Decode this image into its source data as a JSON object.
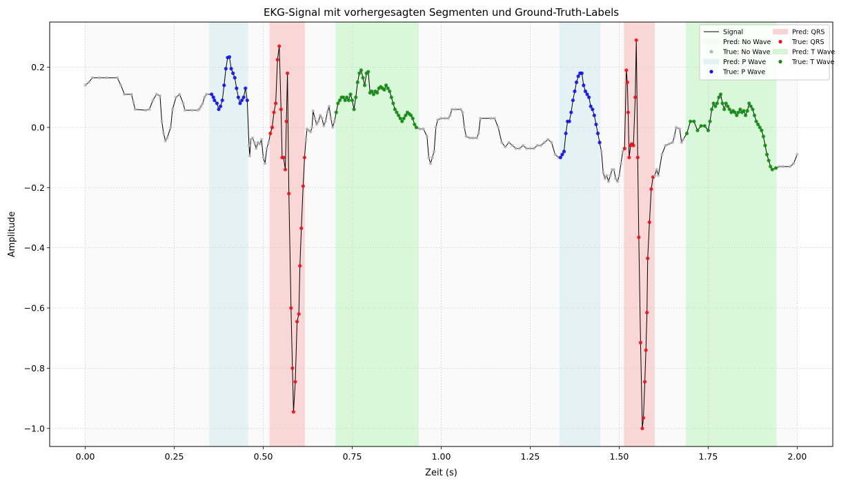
{
  "chart_data": {
    "type": "line",
    "title": "EKG-Signal mit vorhergesagten Segmenten und Ground-Truth-Labels",
    "xlabel": "Zeit (s)",
    "ylabel": "Amplitude",
    "xlim": [
      -0.1,
      2.1
    ],
    "ylim": [
      -1.06,
      0.35
    ],
    "xticks": [
      0.0,
      0.25,
      0.5,
      0.75,
      1.0,
      1.25,
      1.5,
      1.75,
      2.0
    ],
    "xtick_labels": [
      "0.00",
      "0.25",
      "0.50",
      "0.75",
      "1.00",
      "1.25",
      "1.50",
      "1.75",
      "2.00"
    ],
    "yticks": [
      0.2,
      0.0,
      -0.2,
      -0.4,
      -0.6,
      -0.8,
      -1.0
    ],
    "ytick_labels": [
      "0.2",
      "0.0",
      "−0.2",
      "−0.4",
      "−0.6",
      "−0.8",
      "−1.0"
    ],
    "grid": true,
    "legend_position": "top-right",
    "colors": {
      "signal": "#000000",
      "no_wave_band": "#f3f3f3",
      "no_wave_point": "#b8b8b8",
      "p_wave_band": "#d8ecf2",
      "p_wave_point": "#1414e6",
      "qrs_band": "#f8c6c6",
      "qrs_point": "#e6141e",
      "t_wave_band": "#c9f3c9",
      "t_wave_point": "#148c14"
    },
    "legend": [
      {
        "label": "Signal",
        "kind": "line",
        "color": "signal"
      },
      {
        "label": "Pred: No Wave",
        "kind": "band",
        "color": "no_wave_band"
      },
      {
        "label": "True: No Wave",
        "kind": "dot",
        "color": "no_wave_point"
      },
      {
        "label": "Pred: P Wave",
        "kind": "band",
        "color": "p_wave_band"
      },
      {
        "label": "True: P Wave",
        "kind": "dot",
        "color": "p_wave_point"
      },
      {
        "label": "Pred: QRS",
        "kind": "band",
        "color": "qrs_band"
      },
      {
        "label": "True: QRS",
        "kind": "dot",
        "color": "qrs_point"
      },
      {
        "label": "Pred: T Wave",
        "kind": "band",
        "color": "t_wave_band"
      },
      {
        "label": "True: T Wave",
        "kind": "dot",
        "color": "t_wave_point"
      }
    ],
    "predicted_segments": [
      {
        "class": "no_wave",
        "start": 0.0,
        "end": 0.348
      },
      {
        "class": "p_wave",
        "start": 0.348,
        "end": 0.458
      },
      {
        "class": "no_wave",
        "start": 0.458,
        "end": 0.518
      },
      {
        "class": "qrs",
        "start": 0.518,
        "end": 0.617
      },
      {
        "class": "no_wave",
        "start": 0.617,
        "end": 0.703
      },
      {
        "class": "t_wave",
        "start": 0.703,
        "end": 0.937
      },
      {
        "class": "no_wave",
        "start": 0.937,
        "end": 1.332
      },
      {
        "class": "p_wave",
        "start": 1.332,
        "end": 1.447
      },
      {
        "class": "no_wave",
        "start": 1.447,
        "end": 1.513
      },
      {
        "class": "qrs",
        "start": 1.513,
        "end": 1.6
      },
      {
        "class": "no_wave",
        "start": 1.6,
        "end": 1.687
      },
      {
        "class": "t_wave",
        "start": 1.687,
        "end": 1.942
      },
      {
        "class": "no_wave",
        "start": 1.942,
        "end": 2.0
      }
    ],
    "signal": [
      [
        0.0,
        0.14
      ],
      [
        0.01,
        0.15
      ],
      [
        0.02,
        0.165
      ],
      [
        0.04,
        0.165
      ],
      [
        0.06,
        0.165
      ],
      [
        0.09,
        0.165
      ],
      [
        0.1,
        0.14
      ],
      [
        0.11,
        0.11
      ],
      [
        0.13,
        0.11
      ],
      [
        0.135,
        0.085
      ],
      [
        0.14,
        0.06
      ],
      [
        0.17,
        0.057
      ],
      [
        0.18,
        0.06
      ],
      [
        0.19,
        0.09
      ],
      [
        0.2,
        0.11
      ],
      [
        0.21,
        0.105
      ],
      [
        0.215,
        0.02
      ],
      [
        0.22,
        -0.02
      ],
      [
        0.225,
        -0.045
      ],
      [
        0.23,
        -0.035
      ],
      [
        0.24,
        0.0
      ],
      [
        0.245,
        0.06
      ],
      [
        0.255,
        0.1
      ],
      [
        0.265,
        0.11
      ],
      [
        0.275,
        0.08
      ],
      [
        0.28,
        0.057
      ],
      [
        0.3,
        0.057
      ],
      [
        0.315,
        0.057
      ],
      [
        0.32,
        0.06
      ],
      [
        0.325,
        0.07
      ],
      [
        0.33,
        0.08
      ],
      [
        0.335,
        0.1
      ],
      [
        0.34,
        0.11
      ],
      [
        0.355,
        0.11
      ],
      [
        0.36,
        0.1
      ],
      [
        0.363,
        0.09
      ],
      [
        0.37,
        0.08
      ],
      [
        0.375,
        0.06
      ],
      [
        0.38,
        0.07
      ],
      [
        0.385,
        0.09
      ],
      [
        0.39,
        0.14
      ],
      [
        0.395,
        0.195
      ],
      [
        0.4,
        0.232
      ],
      [
        0.405,
        0.234
      ],
      [
        0.41,
        0.195
      ],
      [
        0.415,
        0.18
      ],
      [
        0.42,
        0.165
      ],
      [
        0.425,
        0.13
      ],
      [
        0.43,
        0.1
      ],
      [
        0.435,
        0.08
      ],
      [
        0.44,
        0.09
      ],
      [
        0.445,
        0.1
      ],
      [
        0.45,
        0.13
      ],
      [
        0.455,
        0.09
      ],
      [
        0.46,
        -0.06
      ],
      [
        0.462,
        -0.095
      ],
      [
        0.465,
        -0.04
      ],
      [
        0.47,
        -0.035
      ],
      [
        0.475,
        -0.05
      ],
      [
        0.48,
        -0.07
      ],
      [
        0.485,
        -0.05
      ],
      [
        0.49,
        -0.055
      ],
      [
        0.495,
        -0.04
      ],
      [
        0.5,
        -0.1
      ],
      [
        0.505,
        -0.12
      ],
      [
        0.51,
        -0.07
      ],
      [
        0.515,
        -0.05
      ],
      [
        0.52,
        -0.02
      ],
      [
        0.525,
        0.0
      ],
      [
        0.53,
        0.05
      ],
      [
        0.535,
        0.08
      ],
      [
        0.54,
        0.225
      ],
      [
        0.545,
        0.27
      ],
      [
        0.55,
        0.06
      ],
      [
        0.553,
        -0.1
      ],
      [
        0.557,
        -0.1
      ],
      [
        0.562,
        -0.14
      ],
      [
        0.565,
        0.02
      ],
      [
        0.568,
        0.18
      ],
      [
        0.572,
        -0.22
      ],
      [
        0.578,
        -0.6
      ],
      [
        0.582,
        -0.8
      ],
      [
        0.585,
        -0.945
      ],
      [
        0.59,
        -0.845
      ],
      [
        0.595,
        -0.645
      ],
      [
        0.6,
        -0.62
      ],
      [
        0.603,
        -0.46
      ],
      [
        0.607,
        -0.335
      ],
      [
        0.612,
        -0.195
      ],
      [
        0.616,
        -0.1
      ],
      [
        0.62,
        -0.04
      ],
      [
        0.623,
        -0.005
      ],
      [
        0.628,
        -0.01
      ],
      [
        0.633,
        -0.015
      ],
      [
        0.637,
        0.0
      ],
      [
        0.64,
        0.055
      ],
      [
        0.645,
        0.03
      ],
      [
        0.65,
        0.01
      ],
      [
        0.655,
        0.02
      ],
      [
        0.66,
        0.04
      ],
      [
        0.665,
        0.03
      ],
      [
        0.67,
        0.005
      ],
      [
        0.675,
        0.02
      ],
      [
        0.68,
        0.05
      ],
      [
        0.685,
        0.07
      ],
      [
        0.69,
        0.03
      ],
      [
        0.695,
        0.0
      ],
      [
        0.7,
        0.02
      ],
      [
        0.705,
        0.05
      ],
      [
        0.71,
        0.08
      ],
      [
        0.715,
        0.09
      ],
      [
        0.72,
        0.1
      ],
      [
        0.725,
        0.1
      ],
      [
        0.73,
        0.09
      ],
      [
        0.735,
        0.1
      ],
      [
        0.74,
        0.09
      ],
      [
        0.745,
        0.11
      ],
      [
        0.75,
        0.09
      ],
      [
        0.755,
        0.06
      ],
      [
        0.76,
        0.1
      ],
      [
        0.765,
        0.15
      ],
      [
        0.77,
        0.18
      ],
      [
        0.775,
        0.19
      ],
      [
        0.78,
        0.165
      ],
      [
        0.785,
        0.14
      ],
      [
        0.79,
        0.18
      ],
      [
        0.795,
        0.185
      ],
      [
        0.8,
        0.115
      ],
      [
        0.805,
        0.12
      ],
      [
        0.81,
        0.11
      ],
      [
        0.815,
        0.12
      ],
      [
        0.82,
        0.115
      ],
      [
        0.825,
        0.13
      ],
      [
        0.83,
        0.135
      ],
      [
        0.835,
        0.13
      ],
      [
        0.84,
        0.125
      ],
      [
        0.845,
        0.14
      ],
      [
        0.85,
        0.13
      ],
      [
        0.855,
        0.12
      ],
      [
        0.86,
        0.1
      ],
      [
        0.865,
        0.08
      ],
      [
        0.87,
        0.06
      ],
      [
        0.875,
        0.05
      ],
      [
        0.88,
        0.04
      ],
      [
        0.885,
        0.03
      ],
      [
        0.89,
        0.02
      ],
      [
        0.895,
        0.03
      ],
      [
        0.9,
        0.04
      ],
      [
        0.905,
        0.05
      ],
      [
        0.91,
        0.045
      ],
      [
        0.915,
        0.04
      ],
      [
        0.92,
        0.03
      ],
      [
        0.925,
        0.01
      ],
      [
        0.93,
        0.0
      ],
      [
        0.94,
        -0.005
      ],
      [
        0.95,
        -0.005
      ],
      [
        0.96,
        -0.03
      ],
      [
        0.965,
        -0.1
      ],
      [
        0.97,
        -0.12
      ],
      [
        0.975,
        -0.1
      ],
      [
        0.98,
        -0.08
      ],
      [
        0.985,
        0.0
      ],
      [
        0.99,
        0.025
      ],
      [
        1.0,
        0.03
      ],
      [
        1.01,
        0.03
      ],
      [
        1.02,
        0.03
      ],
      [
        1.025,
        0.04
      ],
      [
        1.03,
        0.06
      ],
      [
        1.04,
        0.06
      ],
      [
        1.055,
        0.06
      ],
      [
        1.06,
        0.05
      ],
      [
        1.065,
        0.0
      ],
      [
        1.07,
        -0.03
      ],
      [
        1.08,
        -0.035
      ],
      [
        1.09,
        -0.035
      ],
      [
        1.1,
        -0.035
      ],
      [
        1.105,
        -0.02
      ],
      [
        1.11,
        0.03
      ],
      [
        1.14,
        0.03
      ],
      [
        1.15,
        0.03
      ],
      [
        1.16,
        0.0
      ],
      [
        1.17,
        -0.05
      ],
      [
        1.18,
        -0.065
      ],
      [
        1.19,
        -0.05
      ],
      [
        1.2,
        -0.06
      ],
      [
        1.21,
        -0.07
      ],
      [
        1.22,
        -0.07
      ],
      [
        1.23,
        -0.06
      ],
      [
        1.24,
        -0.07
      ],
      [
        1.25,
        -0.07
      ],
      [
        1.26,
        -0.07
      ],
      [
        1.27,
        -0.06
      ],
      [
        1.28,
        -0.06
      ],
      [
        1.29,
        -0.05
      ],
      [
        1.3,
        -0.04
      ],
      [
        1.31,
        -0.05
      ],
      [
        1.32,
        -0.09
      ],
      [
        1.33,
        -0.1
      ],
      [
        1.335,
        -0.1
      ],
      [
        1.34,
        -0.09
      ],
      [
        1.345,
        -0.08
      ],
      [
        1.35,
        -0.02
      ],
      [
        1.355,
        0.02
      ],
      [
        1.36,
        0.02
      ],
      [
        1.365,
        0.05
      ],
      [
        1.37,
        0.09
      ],
      [
        1.375,
        0.12
      ],
      [
        1.38,
        0.15
      ],
      [
        1.385,
        0.17
      ],
      [
        1.39,
        0.18
      ],
      [
        1.395,
        0.18
      ],
      [
        1.4,
        0.14
      ],
      [
        1.405,
        0.12
      ],
      [
        1.41,
        0.11
      ],
      [
        1.415,
        0.1
      ],
      [
        1.42,
        0.07
      ],
      [
        1.425,
        0.06
      ],
      [
        1.43,
        0.04
      ],
      [
        1.435,
        0.01
      ],
      [
        1.44,
        -0.02
      ],
      [
        1.445,
        -0.05
      ],
      [
        1.45,
        -0.08
      ],
      [
        1.455,
        -0.15
      ],
      [
        1.46,
        -0.17
      ],
      [
        1.465,
        -0.16
      ],
      [
        1.47,
        -0.18
      ],
      [
        1.475,
        -0.16
      ],
      [
        1.48,
        -0.14
      ],
      [
        1.485,
        -0.14
      ],
      [
        1.49,
        -0.17
      ],
      [
        1.495,
        -0.18
      ],
      [
        1.5,
        -0.16
      ],
      [
        1.505,
        -0.12
      ],
      [
        1.51,
        -0.08
      ],
      [
        1.515,
        -0.07
      ],
      [
        1.52,
        0.19
      ],
      [
        1.523,
        0.15
      ],
      [
        1.525,
        0.05
      ],
      [
        1.528,
        -0.1
      ],
      [
        1.532,
        -0.06
      ],
      [
        1.535,
        -0.055
      ],
      [
        1.54,
        -0.06
      ],
      [
        1.545,
        0.1
      ],
      [
        1.548,
        0.29
      ],
      [
        1.552,
        -0.1
      ],
      [
        1.555,
        -0.365
      ],
      [
        1.56,
        -0.715
      ],
      [
        1.565,
        -1.0
      ],
      [
        1.568,
        -0.965
      ],
      [
        1.572,
        -0.845
      ],
      [
        1.575,
        -0.74
      ],
      [
        1.578,
        -0.615
      ],
      [
        1.58,
        -0.435
      ],
      [
        1.585,
        -0.315
      ],
      [
        1.59,
        -0.205
      ],
      [
        1.595,
        -0.165
      ],
      [
        1.6,
        -0.16
      ],
      [
        1.605,
        -0.14
      ],
      [
        1.61,
        -0.16
      ],
      [
        1.62,
        -0.09
      ],
      [
        1.63,
        -0.06
      ],
      [
        1.64,
        -0.055
      ],
      [
        1.65,
        -0.05
      ],
      [
        1.655,
        -0.03
      ],
      [
        1.66,
        0.0
      ],
      [
        1.67,
        -0.005
      ],
      [
        1.675,
        -0.05
      ],
      [
        1.68,
        -0.04
      ],
      [
        1.69,
        -0.02
      ],
      [
        1.7,
        0.02
      ],
      [
        1.71,
        0.02
      ],
      [
        1.72,
        -0.01
      ],
      [
        1.73,
        0.005
      ],
      [
        1.74,
        0.005
      ],
      [
        1.75,
        -0.01
      ],
      [
        1.755,
        0.02
      ],
      [
        1.76,
        0.06
      ],
      [
        1.765,
        0.08
      ],
      [
        1.77,
        0.07
      ],
      [
        1.775,
        0.08
      ],
      [
        1.78,
        0.1
      ],
      [
        1.785,
        0.11
      ],
      [
        1.79,
        0.08
      ],
      [
        1.795,
        0.06
      ],
      [
        1.8,
        0.08
      ],
      [
        1.805,
        0.07
      ],
      [
        1.81,
        0.06
      ],
      [
        1.815,
        0.05
      ],
      [
        1.82,
        0.055
      ],
      [
        1.825,
        0.05
      ],
      [
        1.83,
        0.04
      ],
      [
        1.835,
        0.05
      ],
      [
        1.84,
        0.06
      ],
      [
        1.845,
        0.05
      ],
      [
        1.85,
        0.055
      ],
      [
        1.855,
        0.04
      ],
      [
        1.86,
        0.055
      ],
      [
        1.865,
        0.08
      ],
      [
        1.87,
        0.07
      ],
      [
        1.875,
        0.06
      ],
      [
        1.88,
        0.04
      ],
      [
        1.885,
        0.02
      ],
      [
        1.89,
        0.01
      ],
      [
        1.895,
        0.0
      ],
      [
        1.9,
        -0.01
      ],
      [
        1.905,
        -0.03
      ],
      [
        1.91,
        -0.06
      ],
      [
        1.915,
        -0.09
      ],
      [
        1.92,
        -0.11
      ],
      [
        1.925,
        -0.13
      ],
      [
        1.93,
        -0.14
      ],
      [
        1.94,
        -0.135
      ],
      [
        1.95,
        -0.13
      ],
      [
        1.96,
        -0.13
      ],
      [
        1.98,
        -0.13
      ],
      [
        1.99,
        -0.12
      ],
      [
        2.0,
        -0.09
      ]
    ]
  }
}
